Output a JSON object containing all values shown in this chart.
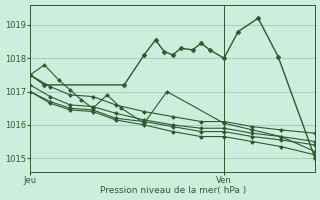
{
  "bg_color": "#cceedd",
  "grid_color": "#99ccbb",
  "line_color": "#2d5a2d",
  "xlabel": "Pression niveau de la mer( hPa )",
  "ylim": [
    1014.6,
    1019.6
  ],
  "yticks": [
    1015,
    1016,
    1017,
    1018,
    1019
  ],
  "xtick_labels": [
    "Jeu",
    "Ven"
  ],
  "vline_x": 0.68,
  "series": [
    {
      "x": [
        0.0,
        0.07,
        0.14,
        0.22,
        0.3,
        0.4,
        0.5,
        0.6,
        0.68,
        0.78,
        0.88,
        1.0
      ],
      "y": [
        1017.5,
        1017.15,
        1016.9,
        1016.85,
        1016.6,
        1016.4,
        1016.25,
        1016.1,
        1016.1,
        1015.95,
        1015.85,
        1015.75
      ]
    },
    {
      "x": [
        0.0,
        0.07,
        0.14,
        0.22,
        0.3,
        0.4,
        0.5,
        0.6,
        0.68,
        0.78,
        0.88,
        1.0
      ],
      "y": [
        1017.2,
        1016.85,
        1016.6,
        1016.55,
        1016.35,
        1016.15,
        1016.0,
        1015.9,
        1015.9,
        1015.75,
        1015.65,
        1015.5
      ]
    },
    {
      "x": [
        0.0,
        0.07,
        0.14,
        0.22,
        0.3,
        0.4,
        0.5,
        0.6,
        0.68,
        0.78,
        0.88,
        1.0
      ],
      "y": [
        1017.0,
        1016.7,
        1016.5,
        1016.45,
        1016.2,
        1016.1,
        1015.95,
        1015.8,
        1015.8,
        1015.65,
        1015.55,
        1015.4
      ]
    },
    {
      "x": [
        0.0,
        0.07,
        0.14,
        0.22,
        0.3,
        0.4,
        0.5,
        0.6,
        0.68,
        0.78,
        0.88,
        1.0
      ],
      "y": [
        1017.0,
        1016.65,
        1016.45,
        1016.4,
        1016.15,
        1016.0,
        1015.8,
        1015.65,
        1015.65,
        1015.5,
        1015.35,
        1015.1
      ]
    },
    {
      "x": [
        0.0,
        0.05,
        0.1,
        0.14,
        0.18,
        0.22,
        0.27,
        0.32,
        0.4,
        0.48,
        0.68,
        0.78,
        0.88,
        1.0
      ],
      "y": [
        1017.5,
        1017.8,
        1017.35,
        1017.05,
        1016.75,
        1016.5,
        1016.9,
        1016.5,
        1016.05,
        1017.0,
        1016.05,
        1015.85,
        1015.65,
        1015.2
      ]
    },
    {
      "x": [
        0.0,
        0.05,
        0.33,
        0.4,
        0.44,
        0.47,
        0.5,
        0.53,
        0.57,
        0.6,
        0.63,
        0.68,
        0.73,
        0.8,
        0.87,
        1.0
      ],
      "y": [
        1017.5,
        1017.2,
        1017.2,
        1018.1,
        1018.55,
        1018.2,
        1018.1,
        1018.3,
        1018.25,
        1018.45,
        1018.25,
        1018.0,
        1018.8,
        1019.2,
        1018.05,
        1015.0
      ]
    }
  ]
}
